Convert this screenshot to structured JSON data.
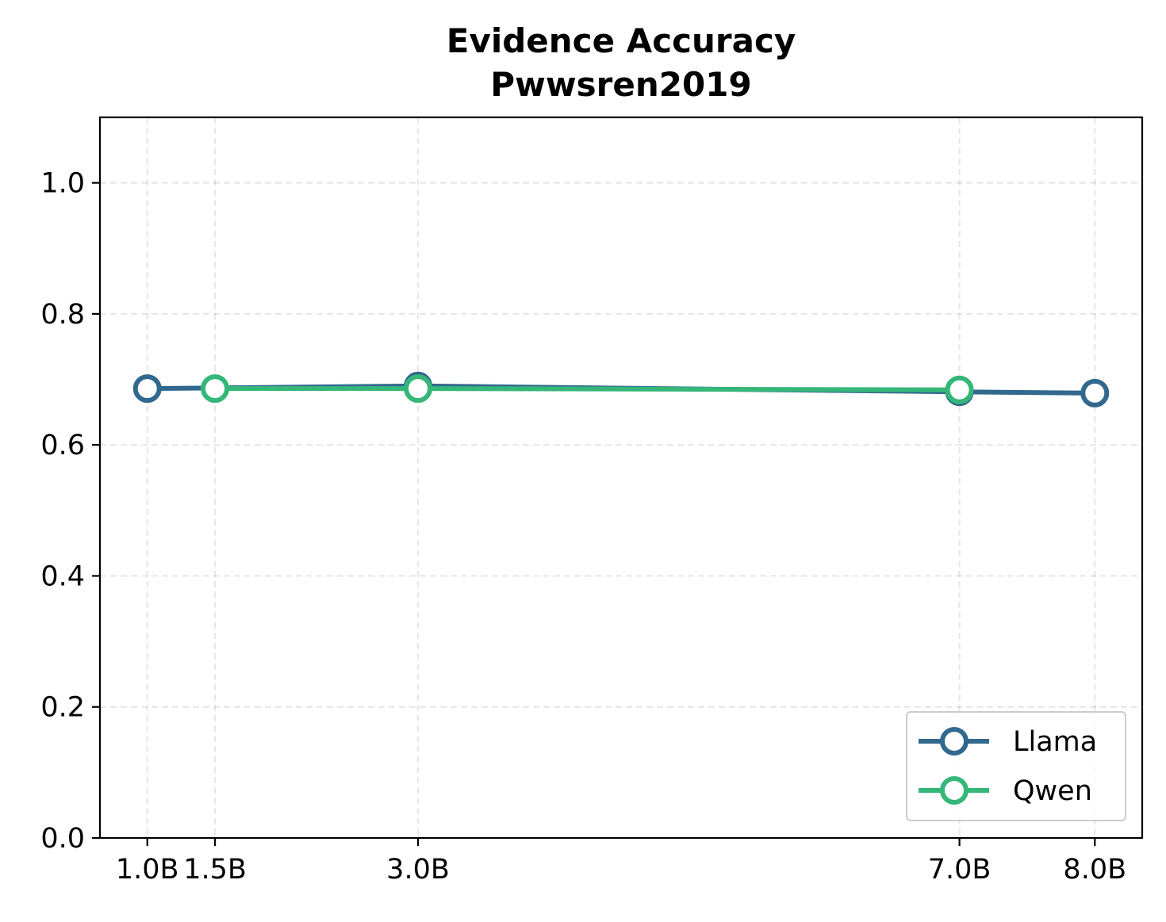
{
  "chart_data": {
    "type": "line",
    "title": "Evidence Accuracy",
    "subtitle": "Pwwsren2019",
    "xlabel": "",
    "ylabel": "",
    "x_values": [
      1.0,
      1.5,
      3.0,
      7.0,
      8.0
    ],
    "x_tick_labels": [
      "1.0B",
      "1.5B",
      "3.0B",
      "7.0B",
      "8.0B"
    ],
    "xlim": [
      0.65,
      8.35
    ],
    "ylim": [
      0.0,
      1.1
    ],
    "y_ticks": [
      0.0,
      0.2,
      0.4,
      0.6,
      0.8,
      1.0
    ],
    "y_tick_labels": [
      "0.0",
      "0.2",
      "0.4",
      "0.6",
      "0.8",
      "1.0"
    ],
    "grid": true,
    "legend_position": "bottom-right",
    "series": [
      {
        "name": "Llama",
        "color": "#31688e",
        "x": [
          1.0,
          3.0,
          7.0,
          8.0
        ],
        "y": [
          0.686,
          0.69,
          0.681,
          0.679
        ]
      },
      {
        "name": "Qwen",
        "color": "#35b779",
        "x": [
          1.5,
          3.0,
          7.0
        ],
        "y": [
          0.686,
          0.686,
          0.684
        ]
      }
    ]
  }
}
